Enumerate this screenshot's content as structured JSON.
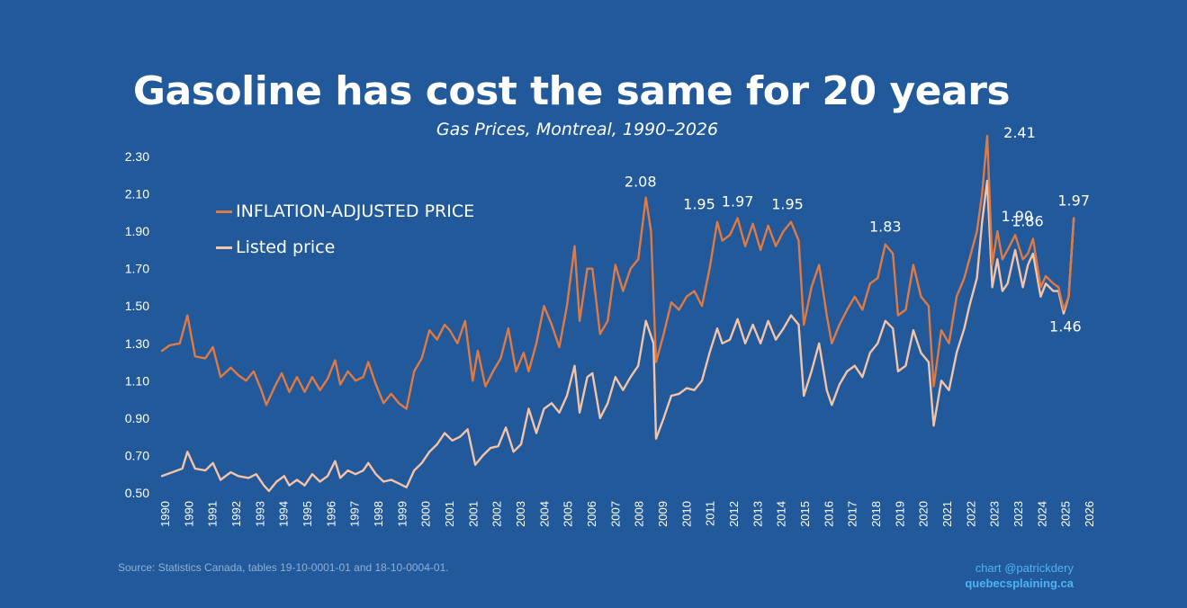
{
  "title": "Gasoline has cost the same for 20 years",
  "subtitle": "Gas Prices, Montreal, 1990–2026",
  "source": "Source: Statistics Canada, tables 19-10-0001-01 and 18-10-0004-01.",
  "credit": {
    "line1": "chart @patrickdery",
    "line2": "quebecsplaining.ca"
  },
  "colors": {
    "background": "#21599b",
    "adjusted": "#e07a42",
    "listed": "#f5c3a6",
    "text": "#ffffff"
  },
  "chart_data": {
    "type": "line",
    "title": "Gasoline has cost the same for 20 years",
    "subtitle": "Gas Prices, Montreal, 1990–2026",
    "xlabel": "",
    "ylabel": "",
    "ylim": [
      0.5,
      2.4
    ],
    "xlim": [
      1990,
      2026.5
    ],
    "y_ticks": [
      "0.50",
      "0.70",
      "0.90",
      "1.10",
      "1.30",
      "1.50",
      "1.70",
      "1.90",
      "2.10",
      "2.30"
    ],
    "x_tick_labels": [
      "1990",
      "1990",
      "1991",
      "1992",
      "1993",
      "1994",
      "1995",
      "1996",
      "1997",
      "1998",
      "1999",
      "2000",
      "2001",
      "2001",
      "2002",
      "2003",
      "2004",
      "2005",
      "2006",
      "2007",
      "2008",
      "2009",
      "2010",
      "2011",
      "2012",
      "2013",
      "2014",
      "2015",
      "2016",
      "2017",
      "2018",
      "2019",
      "2020",
      "2021",
      "2022",
      "2023",
      "2023",
      "2024",
      "2025",
      "2026"
    ],
    "legend": {
      "position": "top-left",
      "entries": [
        "INFLATION-ADJUSTED PRICE",
        "Listed price"
      ]
    },
    "series": [
      {
        "name": "INFLATION-ADJUSTED PRICE",
        "points": [
          [
            1990.0,
            1.26
          ],
          [
            1990.3,
            1.29
          ],
          [
            1990.7,
            1.3
          ],
          [
            1991.0,
            1.45
          ],
          [
            1991.3,
            1.23
          ],
          [
            1991.7,
            1.22
          ],
          [
            1992.0,
            1.28
          ],
          [
            1992.3,
            1.12
          ],
          [
            1992.7,
            1.17
          ],
          [
            1993.0,
            1.13
          ],
          [
            1993.3,
            1.1
          ],
          [
            1993.6,
            1.15
          ],
          [
            1993.9,
            1.05
          ],
          [
            1994.1,
            0.97
          ],
          [
            1994.4,
            1.06
          ],
          [
            1994.7,
            1.14
          ],
          [
            1995.0,
            1.04
          ],
          [
            1995.3,
            1.12
          ],
          [
            1995.6,
            1.04
          ],
          [
            1995.9,
            1.12
          ],
          [
            1996.2,
            1.05
          ],
          [
            1996.5,
            1.11
          ],
          [
            1996.8,
            1.21
          ],
          [
            1997.0,
            1.08
          ],
          [
            1997.3,
            1.15
          ],
          [
            1997.6,
            1.1
          ],
          [
            1997.9,
            1.12
          ],
          [
            1998.1,
            1.2
          ],
          [
            1998.4,
            1.08
          ],
          [
            1998.7,
            0.98
          ],
          [
            1999.0,
            1.03
          ],
          [
            1999.3,
            0.98
          ],
          [
            1999.6,
            0.95
          ],
          [
            1999.9,
            1.15
          ],
          [
            2000.2,
            1.22
          ],
          [
            2000.5,
            1.37
          ],
          [
            2000.8,
            1.32
          ],
          [
            2001.1,
            1.4
          ],
          [
            2001.3,
            1.37
          ],
          [
            2001.6,
            1.3
          ],
          [
            2001.9,
            1.42
          ],
          [
            2002.2,
            1.1
          ],
          [
            2002.4,
            1.26
          ],
          [
            2002.7,
            1.07
          ],
          [
            2003.0,
            1.15
          ],
          [
            2003.3,
            1.22
          ],
          [
            2003.6,
            1.38
          ],
          [
            2003.9,
            1.15
          ],
          [
            2004.2,
            1.25
          ],
          [
            2004.4,
            1.15
          ],
          [
            2004.7,
            1.3
          ],
          [
            2005.0,
            1.5
          ],
          [
            2005.3,
            1.4
          ],
          [
            2005.6,
            1.28
          ],
          [
            2005.9,
            1.5
          ],
          [
            2006.2,
            1.82
          ],
          [
            2006.4,
            1.42
          ],
          [
            2006.7,
            1.7
          ],
          [
            2006.9,
            1.7
          ],
          [
            2007.2,
            1.35
          ],
          [
            2007.5,
            1.42
          ],
          [
            2007.8,
            1.72
          ],
          [
            2008.1,
            1.58
          ],
          [
            2008.4,
            1.7
          ],
          [
            2008.7,
            1.75
          ],
          [
            2009.0,
            2.08
          ],
          [
            2009.2,
            1.9
          ],
          [
            2009.4,
            1.2
          ],
          [
            2009.7,
            1.35
          ],
          [
            2010.0,
            1.52
          ],
          [
            2010.3,
            1.48
          ],
          [
            2010.6,
            1.55
          ],
          [
            2010.9,
            1.58
          ],
          [
            2011.2,
            1.5
          ],
          [
            2011.5,
            1.7
          ],
          [
            2011.8,
            1.95
          ],
          [
            2012.0,
            1.85
          ],
          [
            2012.3,
            1.88
          ],
          [
            2012.6,
            1.97
          ],
          [
            2012.9,
            1.82
          ],
          [
            2013.2,
            1.94
          ],
          [
            2013.5,
            1.8
          ],
          [
            2013.8,
            1.93
          ],
          [
            2014.1,
            1.82
          ],
          [
            2014.4,
            1.9
          ],
          [
            2014.7,
            1.95
          ],
          [
            2015.0,
            1.85
          ],
          [
            2015.2,
            1.4
          ],
          [
            2015.5,
            1.6
          ],
          [
            2015.8,
            1.72
          ],
          [
            2016.1,
            1.45
          ],
          [
            2016.3,
            1.3
          ],
          [
            2016.6,
            1.4
          ],
          [
            2016.9,
            1.48
          ],
          [
            2017.2,
            1.55
          ],
          [
            2017.5,
            1.48
          ],
          [
            2017.8,
            1.62
          ],
          [
            2018.1,
            1.65
          ],
          [
            2018.4,
            1.83
          ],
          [
            2018.7,
            1.78
          ],
          [
            2018.9,
            1.45
          ],
          [
            2019.2,
            1.48
          ],
          [
            2019.5,
            1.72
          ],
          [
            2019.8,
            1.55
          ],
          [
            2020.1,
            1.5
          ],
          [
            2020.3,
            1.07
          ],
          [
            2020.6,
            1.37
          ],
          [
            2020.9,
            1.3
          ],
          [
            2021.2,
            1.55
          ],
          [
            2021.5,
            1.65
          ],
          [
            2021.7,
            1.75
          ],
          [
            2022.0,
            1.9
          ],
          [
            2022.2,
            2.1
          ],
          [
            2022.4,
            2.41
          ],
          [
            2022.6,
            1.72
          ],
          [
            2022.8,
            1.9
          ],
          [
            2023.0,
            1.75
          ],
          [
            2023.2,
            1.8
          ],
          [
            2023.5,
            1.88
          ],
          [
            2023.8,
            1.75
          ],
          [
            2024.0,
            1.78
          ],
          [
            2024.2,
            1.86
          ],
          [
            2024.5,
            1.6
          ],
          [
            2024.7,
            1.66
          ],
          [
            2025.0,
            1.62
          ],
          [
            2025.2,
            1.6
          ],
          [
            2025.4,
            1.48
          ],
          [
            2025.6,
            1.55
          ],
          [
            2025.8,
            1.97
          ]
        ]
      },
      {
        "name": "Listed price",
        "points": [
          [
            1990.0,
            0.59
          ],
          [
            1990.4,
            0.61
          ],
          [
            1990.8,
            0.63
          ],
          [
            1991.0,
            0.72
          ],
          [
            1991.3,
            0.63
          ],
          [
            1991.7,
            0.62
          ],
          [
            1992.0,
            0.66
          ],
          [
            1992.3,
            0.57
          ],
          [
            1992.7,
            0.61
          ],
          [
            1993.0,
            0.59
          ],
          [
            1993.4,
            0.58
          ],
          [
            1993.7,
            0.6
          ],
          [
            1994.0,
            0.54
          ],
          [
            1994.2,
            0.51
          ],
          [
            1994.5,
            0.56
          ],
          [
            1994.8,
            0.59
          ],
          [
            1995.0,
            0.54
          ],
          [
            1995.3,
            0.57
          ],
          [
            1995.6,
            0.54
          ],
          [
            1995.9,
            0.6
          ],
          [
            1996.2,
            0.56
          ],
          [
            1996.5,
            0.59
          ],
          [
            1996.8,
            0.67
          ],
          [
            1997.0,
            0.58
          ],
          [
            1997.3,
            0.62
          ],
          [
            1997.6,
            0.6
          ],
          [
            1997.9,
            0.62
          ],
          [
            1998.1,
            0.66
          ],
          [
            1998.4,
            0.6
          ],
          [
            1998.7,
            0.56
          ],
          [
            1999.0,
            0.57
          ],
          [
            1999.3,
            0.55
          ],
          [
            1999.6,
            0.53
          ],
          [
            1999.9,
            0.62
          ],
          [
            2000.2,
            0.66
          ],
          [
            2000.5,
            0.72
          ],
          [
            2000.8,
            0.76
          ],
          [
            2001.1,
            0.82
          ],
          [
            2001.4,
            0.78
          ],
          [
            2001.7,
            0.8
          ],
          [
            2002.0,
            0.84
          ],
          [
            2002.3,
            0.65
          ],
          [
            2002.6,
            0.7
          ],
          [
            2002.9,
            0.74
          ],
          [
            2003.2,
            0.75
          ],
          [
            2003.5,
            0.85
          ],
          [
            2003.8,
            0.72
          ],
          [
            2004.1,
            0.76
          ],
          [
            2004.4,
            0.95
          ],
          [
            2004.7,
            0.82
          ],
          [
            2005.0,
            0.95
          ],
          [
            2005.3,
            0.98
          ],
          [
            2005.6,
            0.93
          ],
          [
            2005.9,
            1.02
          ],
          [
            2006.2,
            1.18
          ],
          [
            2006.4,
            0.93
          ],
          [
            2006.7,
            1.12
          ],
          [
            2006.9,
            1.14
          ],
          [
            2007.2,
            0.9
          ],
          [
            2007.5,
            0.98
          ],
          [
            2007.8,
            1.12
          ],
          [
            2008.1,
            1.05
          ],
          [
            2008.4,
            1.12
          ],
          [
            2008.7,
            1.18
          ],
          [
            2009.0,
            1.42
          ],
          [
            2009.3,
            1.3
          ],
          [
            2009.4,
            0.79
          ],
          [
            2009.7,
            0.9
          ],
          [
            2010.0,
            1.02
          ],
          [
            2010.3,
            1.03
          ],
          [
            2010.6,
            1.06
          ],
          [
            2010.9,
            1.05
          ],
          [
            2011.2,
            1.1
          ],
          [
            2011.5,
            1.25
          ],
          [
            2011.8,
            1.38
          ],
          [
            2012.0,
            1.3
          ],
          [
            2012.3,
            1.32
          ],
          [
            2012.6,
            1.43
          ],
          [
            2012.9,
            1.3
          ],
          [
            2013.2,
            1.4
          ],
          [
            2013.5,
            1.3
          ],
          [
            2013.8,
            1.42
          ],
          [
            2014.1,
            1.32
          ],
          [
            2014.4,
            1.38
          ],
          [
            2014.7,
            1.45
          ],
          [
            2015.0,
            1.4
          ],
          [
            2015.2,
            1.02
          ],
          [
            2015.5,
            1.15
          ],
          [
            2015.8,
            1.3
          ],
          [
            2016.1,
            1.05
          ],
          [
            2016.3,
            0.97
          ],
          [
            2016.6,
            1.08
          ],
          [
            2016.9,
            1.15
          ],
          [
            2017.2,
            1.18
          ],
          [
            2017.5,
            1.12
          ],
          [
            2017.8,
            1.25
          ],
          [
            2018.1,
            1.3
          ],
          [
            2018.4,
            1.42
          ],
          [
            2018.7,
            1.38
          ],
          [
            2018.9,
            1.15
          ],
          [
            2019.2,
            1.18
          ],
          [
            2019.5,
            1.37
          ],
          [
            2019.8,
            1.25
          ],
          [
            2020.1,
            1.2
          ],
          [
            2020.3,
            0.86
          ],
          [
            2020.6,
            1.1
          ],
          [
            2020.9,
            1.05
          ],
          [
            2021.2,
            1.25
          ],
          [
            2021.5,
            1.38
          ],
          [
            2021.7,
            1.5
          ],
          [
            2022.0,
            1.65
          ],
          [
            2022.2,
            1.95
          ],
          [
            2022.4,
            2.17
          ],
          [
            2022.6,
            1.6
          ],
          [
            2022.8,
            1.75
          ],
          [
            2023.0,
            1.58
          ],
          [
            2023.2,
            1.62
          ],
          [
            2023.5,
            1.8
          ],
          [
            2023.8,
            1.6
          ],
          [
            2024.0,
            1.72
          ],
          [
            2024.2,
            1.78
          ],
          [
            2024.5,
            1.55
          ],
          [
            2024.7,
            1.62
          ],
          [
            2025.0,
            1.58
          ],
          [
            2025.2,
            1.58
          ],
          [
            2025.4,
            1.46
          ],
          [
            2025.6,
            1.55
          ],
          [
            2025.8,
            1.97
          ]
        ]
      }
    ],
    "annotations": [
      {
        "text": "2.08",
        "x": 2009.0,
        "y": 2.08
      },
      {
        "text": "1.95",
        "x": 2011.8,
        "y": 1.95
      },
      {
        "text": "1.97",
        "x": 2012.6,
        "y": 1.97
      },
      {
        "text": "1.95",
        "x": 2014.7,
        "y": 1.95
      },
      {
        "text": "1.83",
        "x": 2018.4,
        "y": 1.83
      },
      {
        "text": "2.41",
        "x": 2022.4,
        "y": 2.41
      },
      {
        "text": "1.90",
        "x": 2022.8,
        "y": 1.9
      },
      {
        "text": "1.86",
        "x": 2024.2,
        "y": 1.86
      },
      {
        "text": "1.97",
        "x": 2025.8,
        "y": 1.97
      },
      {
        "text": "1.46",
        "x": 2025.4,
        "y": 1.46
      }
    ]
  }
}
